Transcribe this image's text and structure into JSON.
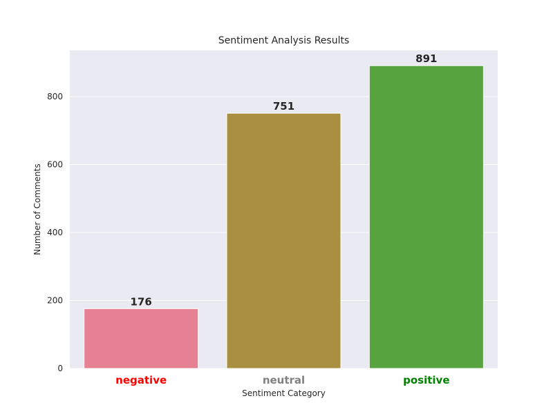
{
  "chart_data": {
    "type": "bar",
    "title": "Sentiment Analysis Results",
    "xlabel": "Sentiment Category",
    "ylabel": "Number of Comments",
    "categories": [
      "negative",
      "neutral",
      "positive"
    ],
    "values": [
      176,
      751,
      891
    ],
    "bar_colors": [
      "#e68193",
      "#a98f40",
      "#58a441"
    ],
    "category_label_colors": [
      "#ff0000",
      "#808080",
      "#008000"
    ],
    "ylim": [
      0,
      936
    ],
    "yticks": [
      0,
      200,
      400,
      600,
      800
    ],
    "grid": true,
    "plot_background": "#eaeaf2",
    "grid_color": "#ffffff"
  }
}
